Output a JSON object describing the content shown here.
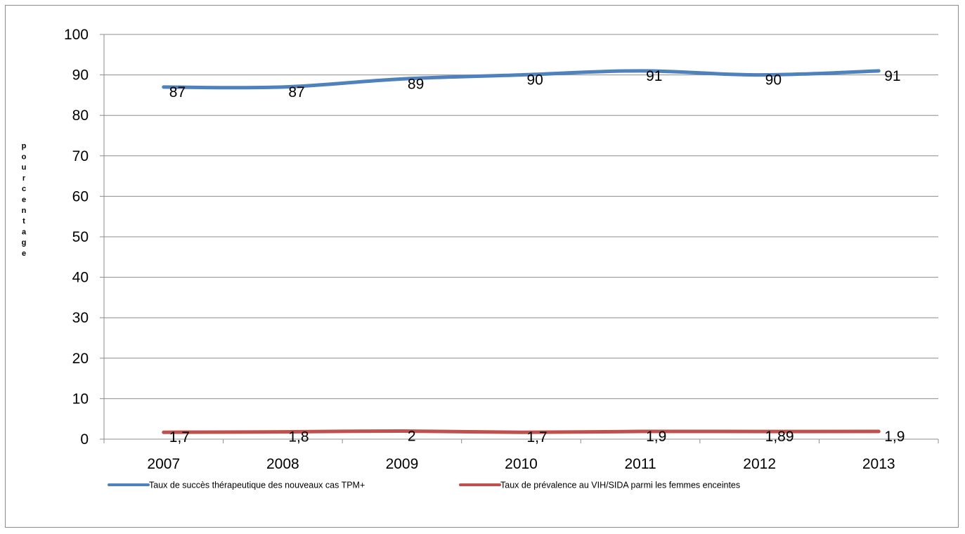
{
  "chart_data": {
    "type": "line",
    "title": "",
    "xlabel": "",
    "ylabel": "pourcentage",
    "ylim": [
      0,
      100
    ],
    "yticks": [
      0,
      10,
      20,
      30,
      40,
      50,
      60,
      70,
      80,
      90,
      100
    ],
    "categories": [
      "2007",
      "2008",
      "2009",
      "2010",
      "2011",
      "2012",
      "2013"
    ],
    "grid": true,
    "legend_position": "bottom",
    "series": [
      {
        "name": "Taux de succès thérapeutique des nouveaux cas TPM+",
        "color": "#4f81bd",
        "values": [
          87,
          87,
          89,
          90,
          91,
          90,
          91
        ],
        "labels": [
          "87",
          "87",
          "89",
          "90",
          "91",
          "90",
          "91"
        ]
      },
      {
        "name": "Taux de prévalence au VIH/SIDA parmi les femmes enceintes",
        "color": "#c0504d",
        "values": [
          1.7,
          1.8,
          2,
          1.7,
          1.9,
          1.89,
          1.9
        ],
        "labels": [
          "1,7",
          "1,8",
          "2",
          "1,7",
          "1,9",
          "1,89",
          "1,9"
        ]
      }
    ]
  }
}
